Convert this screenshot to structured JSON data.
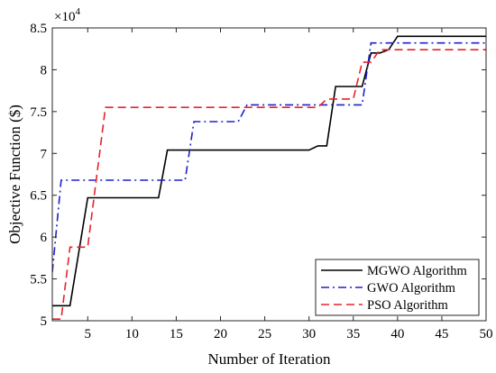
{
  "chart_data": {
    "type": "line",
    "title": "",
    "xlabel": "Number of Iteration",
    "ylabel": "Objective Function ($)",
    "exponent_label": "×10",
    "exponent_power": "4",
    "xlim": [
      1,
      50
    ],
    "ylim": [
      5.0,
      8.5
    ],
    "xticks": [
      5,
      10,
      15,
      20,
      25,
      30,
      35,
      40,
      45,
      50
    ],
    "xtick_labels": [
      "5",
      "10",
      "15",
      "20",
      "25",
      "30",
      "35",
      "40",
      "45",
      "50"
    ],
    "yticks": [
      5.0,
      5.5,
      6.0,
      6.5,
      7.0,
      7.5,
      8.0,
      8.5
    ],
    "ytick_labels": [
      "5",
      "5.5",
      "6",
      "6.5",
      "7",
      "7.5",
      "8",
      "8.5"
    ],
    "grid": false,
    "legend_position": "bottom-right",
    "series": [
      {
        "name": "MGWO Algorithm",
        "color": "#000000",
        "dash": "solid",
        "x": [
          1,
          3,
          5,
          13,
          14,
          30,
          31,
          32,
          33,
          36,
          37,
          38,
          39,
          40,
          50
        ],
        "y": [
          5.18,
          5.18,
          6.47,
          6.47,
          7.04,
          7.04,
          7.09,
          7.09,
          7.8,
          7.8,
          8.2,
          8.2,
          8.24,
          8.4,
          8.4
        ]
      },
      {
        "name": "GWO Algorithm",
        "color": "#1f1fd0",
        "dash": "dashdot",
        "x": [
          1,
          2,
          16,
          17,
          22,
          23,
          31,
          36,
          37,
          50
        ],
        "y": [
          5.58,
          6.68,
          6.68,
          7.38,
          7.38,
          7.58,
          7.58,
          7.58,
          8.32,
          8.32
        ]
      },
      {
        "name": "PSO Algorithm",
        "color": "#e8232a",
        "dash": "dashed",
        "x": [
          1,
          2,
          3,
          5,
          7,
          31,
          32,
          35,
          36,
          37,
          38,
          50
        ],
        "y": [
          5.02,
          5.02,
          5.88,
          5.88,
          7.55,
          7.55,
          7.65,
          7.65,
          8.09,
          8.09,
          8.24,
          8.24
        ]
      }
    ]
  }
}
